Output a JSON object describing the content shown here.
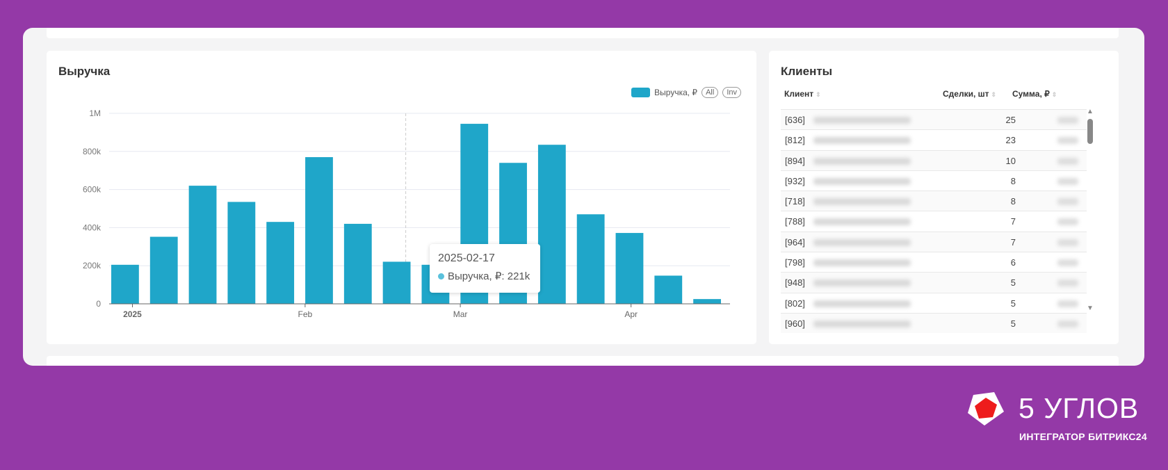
{
  "revenue": {
    "title": "Выручка",
    "legend_label": "Выручка, ₽",
    "btn_all": "All",
    "btn_inv": "Inv",
    "tooltip": {
      "date": "2025-02-17",
      "label": "Выручка, ₽: 221k"
    },
    "colors": {
      "bar": "#1fa6c9"
    }
  },
  "chart_data": {
    "type": "bar",
    "title": "Выручка",
    "series": [
      {
        "name": "Выручка, ₽",
        "values": [
          205000,
          352000,
          620000,
          535000,
          430000,
          770000,
          420000,
          221000,
          205000,
          945000,
          740000,
          835000,
          470000,
          372000,
          148000,
          25000
        ]
      }
    ],
    "ylim": [
      0,
      1000000
    ],
    "y_ticks": [
      {
        "v": 0,
        "label": "0"
      },
      {
        "v": 200000,
        "label": "200k"
      },
      {
        "v": 400000,
        "label": "400k"
      },
      {
        "v": 600000,
        "label": "600k"
      },
      {
        "v": 800000,
        "label": "800k"
      },
      {
        "v": 1000000,
        "label": "1M"
      }
    ],
    "x_ticks": [
      {
        "at": 0.6,
        "label": "2025",
        "bold": true
      },
      {
        "at": 5.05,
        "label": "Feb"
      },
      {
        "at": 9.05,
        "label": "Mar"
      },
      {
        "at": 13.45,
        "label": "Apr"
      }
    ],
    "highlight_index": 7,
    "grid": true,
    "legend": "top-right"
  },
  "clients": {
    "title": "Клиенты",
    "columns": [
      "Клиент",
      "Сделки, шт",
      "Сумма, ₽"
    ],
    "rows": [
      {
        "id": "[636]",
        "deals": "25"
      },
      {
        "id": "[812]",
        "deals": "23"
      },
      {
        "id": "[894]",
        "deals": "10"
      },
      {
        "id": "[932]",
        "deals": "8"
      },
      {
        "id": "[718]",
        "deals": "8"
      },
      {
        "id": "[788]",
        "deals": "7"
      },
      {
        "id": "[964]",
        "deals": "7"
      },
      {
        "id": "[798]",
        "deals": "6"
      },
      {
        "id": "[948]",
        "deals": "5"
      },
      {
        "id": "[802]",
        "deals": "5"
      },
      {
        "id": "[960]",
        "deals": "5"
      }
    ]
  },
  "brand": {
    "name": "5 УГЛОВ",
    "tagline": "ИНТЕГРАТОР БИТРИКС24"
  }
}
